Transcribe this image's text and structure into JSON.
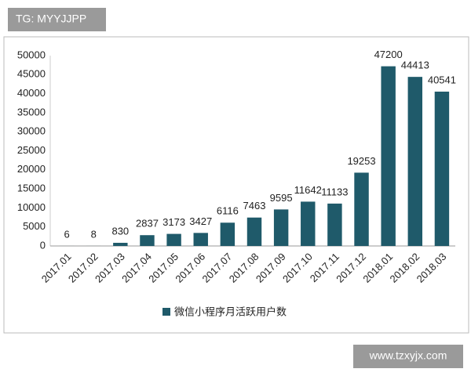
{
  "chart_data": {
    "type": "bar",
    "annotations": [
      "TG: MYYJJPP",
      "www.tzxyjx.com"
    ],
    "categories": [
      "2017.01",
      "2017.02",
      "2017.03",
      "2017.04",
      "2017.05",
      "2017.06",
      "2017.07",
      "2017.08",
      "2017.09",
      "2017.10",
      "2017.11",
      "2017.12",
      "2018.01",
      "2018.02",
      "2018.03"
    ],
    "series": [
      {
        "name": "微信小程序月活跃用户数",
        "color": "#1f5a6a",
        "values": [
          6,
          8,
          830,
          2837,
          3173,
          3427,
          6116,
          7463,
          9595,
          11642,
          11133,
          19253,
          47200,
          44413,
          40541
        ]
      }
    ],
    "ylim": [
      0,
      50000
    ],
    "yticks": [
      0,
      5000,
      10000,
      15000,
      20000,
      25000,
      30000,
      35000,
      40000,
      45000,
      50000
    ],
    "grid": false,
    "legend": "bottom"
  }
}
